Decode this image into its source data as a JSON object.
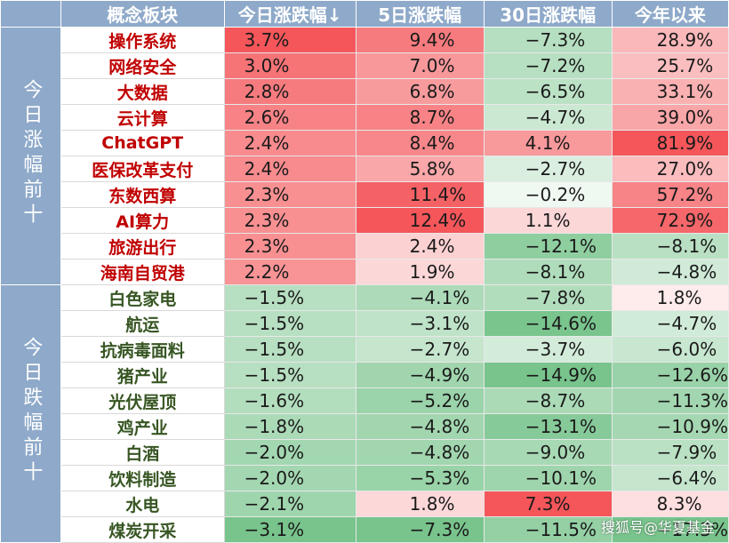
{
  "headers": [
    "概念板块",
    "今日涨跌幅↓",
    "5日涨跌幅",
    "30日涨跌幅",
    "今年以来"
  ],
  "groups": [
    {
      "label": "今日涨幅前十",
      "direction": "up",
      "rows": [
        {
          "name": "操作系统",
          "d1": "3.7%",
          "d5": "9.4%",
          "d30": "−7.3%",
          "ytd": "28.9%"
        },
        {
          "name": "网络安全",
          "d1": "3.0%",
          "d5": "7.0%",
          "d30": "−7.2%",
          "ytd": "25.7%"
        },
        {
          "name": "大数据",
          "d1": "2.8%",
          "d5": "6.8%",
          "d30": "−6.5%",
          "ytd": "33.1%"
        },
        {
          "name": "云计算",
          "d1": "2.6%",
          "d5": "8.7%",
          "d30": "−4.7%",
          "ytd": "39.0%"
        },
        {
          "name": "ChatGPT",
          "d1": "2.4%",
          "d5": "8.4%",
          "d30": "4.1%",
          "ytd": "81.9%"
        },
        {
          "name": "医保改革支付",
          "d1": "2.4%",
          "d5": "5.8%",
          "d30": "−2.7%",
          "ytd": "27.0%"
        },
        {
          "name": "东数西算",
          "d1": "2.3%",
          "d5": "11.4%",
          "d30": "−0.2%",
          "ytd": "57.2%"
        },
        {
          "name": "AI算力",
          "d1": "2.3%",
          "d5": "12.4%",
          "d30": "1.1%",
          "ytd": "72.9%"
        },
        {
          "name": "旅游出行",
          "d1": "2.3%",
          "d5": "2.4%",
          "d30": "−12.1%",
          "ytd": "−8.1%"
        },
        {
          "name": "海南自贸港",
          "d1": "2.2%",
          "d5": "1.9%",
          "d30": "−8.1%",
          "ytd": "−4.8%"
        }
      ]
    },
    {
      "label": "今日跌幅前十",
      "direction": "down",
      "rows": [
        {
          "name": "白色家电",
          "d1": "−1.5%",
          "d5": "−4.1%",
          "d30": "−7.8%",
          "ytd": "1.8%"
        },
        {
          "name": "航运",
          "d1": "−1.5%",
          "d5": "−3.1%",
          "d30": "−14.6%",
          "ytd": "−4.7%"
        },
        {
          "name": "抗病毒面料",
          "d1": "−1.5%",
          "d5": "−2.7%",
          "d30": "−3.7%",
          "ytd": "−6.0%"
        },
        {
          "name": "猪产业",
          "d1": "−1.5%",
          "d5": "−4.9%",
          "d30": "−14.9%",
          "ytd": "−12.6%"
        },
        {
          "name": "光伏屋顶",
          "d1": "−1.6%",
          "d5": "−5.2%",
          "d30": "−8.7%",
          "ytd": "−11.3%"
        },
        {
          "name": "鸡产业",
          "d1": "−1.8%",
          "d5": "−4.8%",
          "d30": "−13.1%",
          "ytd": "−10.9%"
        },
        {
          "name": "白酒",
          "d1": "−2.0%",
          "d5": "−4.8%",
          "d30": "−9.0%",
          "ytd": "−7.9%"
        },
        {
          "name": "饮料制造",
          "d1": "−2.0%",
          "d5": "−5.3%",
          "d30": "−10.1%",
          "ytd": "−6.4%"
        },
        {
          "name": "水电",
          "d1": "−2.1%",
          "d5": "1.8%",
          "d30": "7.3%",
          "ytd": "8.3%"
        },
        {
          "name": "煤炭开采",
          "d1": "−3.1%",
          "d5": "−7.3%",
          "d30": "−11.5%",
          "ytd": "−17.3%"
        }
      ]
    }
  ],
  "watermark": "搜狐号@华夏基金",
  "colors": {
    "header_bg": "#8ea9c9",
    "up_text": "#c00000",
    "down_text": "#375623",
    "positive_scale_max": "#f4565a",
    "negative_scale_max": "#78c48c"
  }
}
